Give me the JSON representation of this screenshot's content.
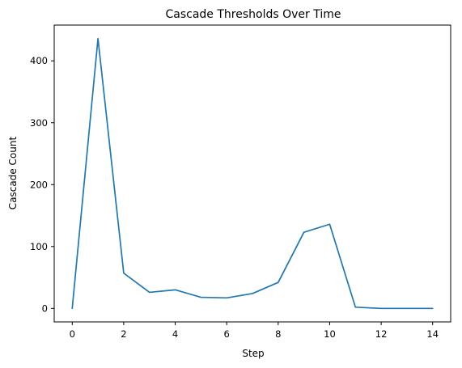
{
  "chart_data": {
    "type": "line",
    "title": "Cascade Thresholds Over Time",
    "xlabel": "Step",
    "ylabel": "Cascade Count",
    "xlim": [
      -0.7,
      14.7
    ],
    "ylim": [
      -21.8,
      457.8
    ],
    "xticks": [
      0,
      2,
      4,
      6,
      8,
      10,
      12,
      14
    ],
    "yticks": [
      0,
      100,
      200,
      300,
      400
    ],
    "grid": false,
    "series": [
      {
        "color": "#1f77b4",
        "x": [
          0,
          1,
          2,
          3,
          4,
          5,
          6,
          7,
          8,
          9,
          10,
          11,
          12,
          13,
          14
        ],
        "y": [
          0,
          436,
          57,
          26,
          30,
          18,
          17,
          24,
          42,
          123,
          136,
          2,
          0,
          0,
          0
        ]
      }
    ]
  }
}
